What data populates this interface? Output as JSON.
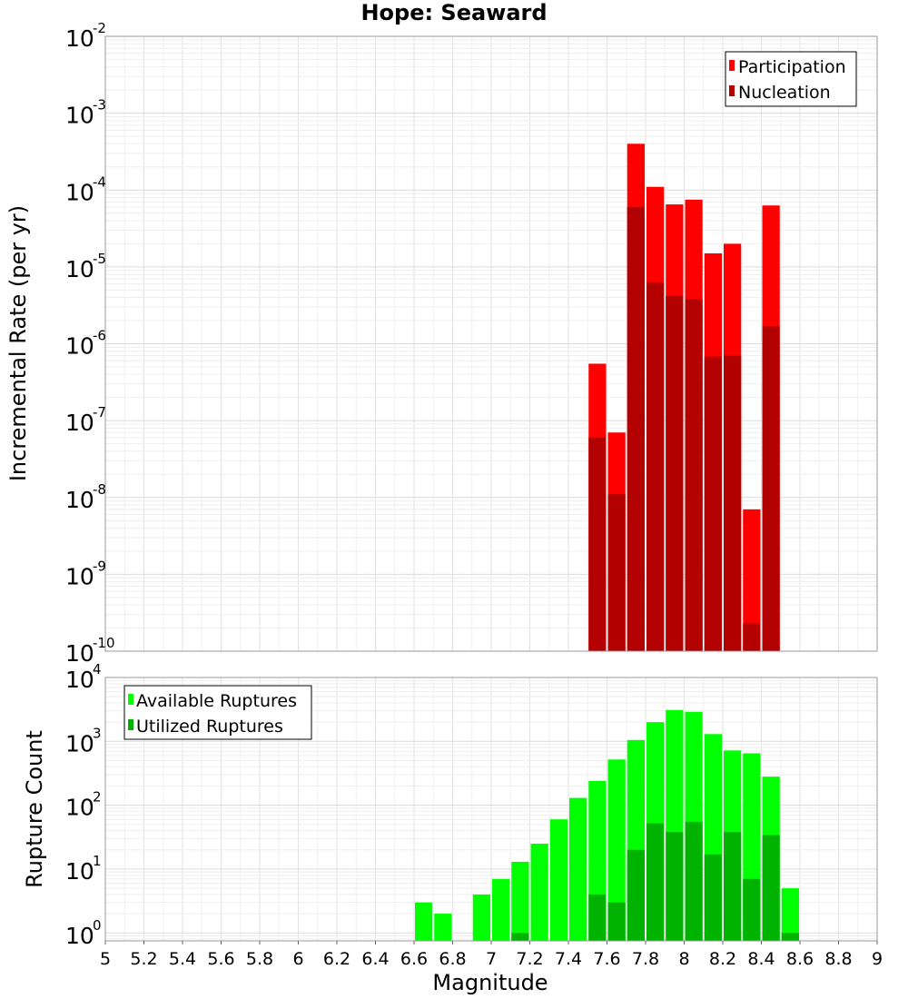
{
  "chart_data": [
    {
      "type": "bar",
      "title": "Hope: Seaward",
      "ylabel": "Incremental Rate (per yr)",
      "xlabel": "",
      "yscale": "log",
      "ylim": [
        1e-10,
        0.01
      ],
      "xlim": [
        5,
        9
      ],
      "y_ticks": [
        {
          "base": "10",
          "exp": "-2"
        },
        {
          "base": "10",
          "exp": "-3"
        },
        {
          "base": "10",
          "exp": "-4"
        },
        {
          "base": "10",
          "exp": "-5"
        },
        {
          "base": "10",
          "exp": "-6"
        },
        {
          "base": "10",
          "exp": "-7"
        },
        {
          "base": "10",
          "exp": "-8"
        },
        {
          "base": "10",
          "exp": "-9"
        },
        {
          "base": "10",
          "exp": "-10"
        }
      ],
      "legend": {
        "position": "top-right"
      },
      "grid": true,
      "bin_width": 0.1,
      "series": [
        {
          "name": "Participation",
          "color": "#ff0000",
          "x": [
            7.55,
            7.65,
            7.75,
            7.85,
            7.95,
            8.05,
            8.15,
            8.25,
            8.35,
            8.45
          ],
          "values": [
            5.5e-07,
            7e-08,
            0.0004,
            0.00011,
            6.5e-05,
            7.5e-05,
            1.5e-05,
            2e-05,
            7e-09,
            6.3e-05
          ]
        },
        {
          "name": "Nucleation",
          "color": "#b30000",
          "x": [
            7.55,
            7.65,
            7.75,
            7.85,
            7.95,
            8.05,
            8.15,
            8.25,
            8.35,
            8.45
          ],
          "values": [
            6e-08,
            1.1e-08,
            6e-05,
            6.3e-06,
            4.2e-06,
            3.8e-06,
            6.8e-07,
            7e-07,
            2.3e-10,
            1.7e-06
          ]
        }
      ]
    },
    {
      "type": "bar",
      "title": "",
      "ylabel": "Rupture Count",
      "xlabel": "Magnitude",
      "yscale": "log",
      "ylim": [
        0.75,
        10000
      ],
      "xlim": [
        5,
        9
      ],
      "x_ticks": [
        "5",
        "5.2",
        "5.4",
        "5.6",
        "5.8",
        "6",
        "6.2",
        "6.4",
        "6.6",
        "6.8",
        "7",
        "7.2",
        "7.4",
        "7.6",
        "7.8",
        "8",
        "8.2",
        "8.4",
        "8.6",
        "8.8",
        "9"
      ],
      "y_ticks": [
        {
          "base": "10",
          "exp": "4"
        },
        {
          "base": "10",
          "exp": "3"
        },
        {
          "base": "10",
          "exp": "2"
        },
        {
          "base": "10",
          "exp": "1"
        },
        {
          "base": "10",
          "exp": "0"
        }
      ],
      "legend": {
        "position": "top-left"
      },
      "grid": true,
      "bin_width": 0.1,
      "series": [
        {
          "name": "Available Ruptures",
          "color": "#00ff00",
          "x": [
            6.65,
            6.75,
            6.95,
            7.05,
            7.15,
            7.25,
            7.35,
            7.45,
            7.55,
            7.65,
            7.75,
            7.85,
            7.95,
            8.05,
            8.15,
            8.25,
            8.35,
            8.45,
            8.55
          ],
          "values": [
            3,
            2,
            4,
            7,
            13,
            25,
            60,
            130,
            240,
            520,
            1050,
            2000,
            3100,
            2900,
            1300,
            720,
            650,
            280,
            5
          ]
        },
        {
          "name": "Utilized Ruptures",
          "color": "#00b300",
          "x": [
            7.15,
            7.55,
            7.65,
            7.75,
            7.85,
            7.95,
            8.05,
            8.15,
            8.25,
            8.35,
            8.45,
            8.55
          ],
          "values": [
            1,
            4,
            3,
            20,
            52,
            38,
            55,
            17,
            38,
            7,
            34,
            1
          ]
        }
      ]
    }
  ]
}
